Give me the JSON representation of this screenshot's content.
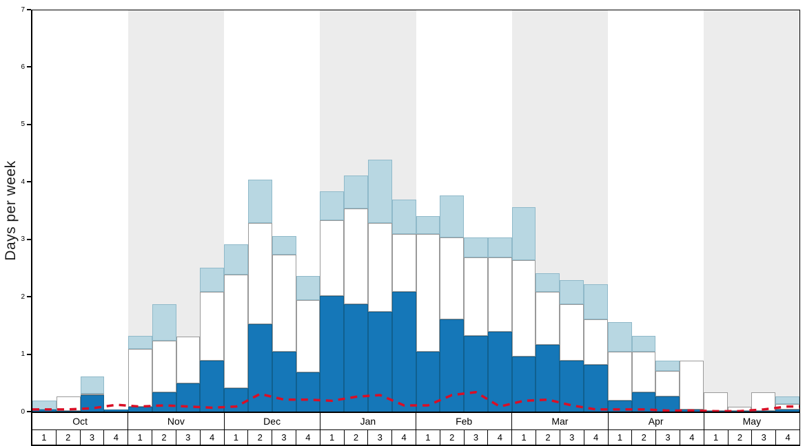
{
  "chart_data": {
    "type": "bar",
    "stacked": true,
    "title": "",
    "ylabel": "Days per week",
    "ylim": [
      0,
      7
    ],
    "yticks": [
      0,
      1,
      2,
      3,
      4,
      5,
      6,
      7
    ],
    "band_color": "#ececec",
    "legend": "none",
    "months": [
      {
        "name": "Oct",
        "shaded": false
      },
      {
        "name": "Nov",
        "shaded": true
      },
      {
        "name": "Dec",
        "shaded": false
      },
      {
        "name": "Jan",
        "shaded": true
      },
      {
        "name": "Feb",
        "shaded": false
      },
      {
        "name": "Mar",
        "shaded": true
      },
      {
        "name": "Apr",
        "shaded": false
      },
      {
        "name": "May",
        "shaded": true
      }
    ],
    "week_labels": [
      "1",
      "2",
      "3",
      "4"
    ],
    "categories": [
      "Oct 1",
      "Oct 2",
      "Oct 3",
      "Oct 4",
      "Nov 1",
      "Nov 2",
      "Nov 3",
      "Nov 4",
      "Dec 1",
      "Dec 2",
      "Dec 3",
      "Dec 4",
      "Jan 1",
      "Jan 2",
      "Jan 3",
      "Jan 4",
      "Feb 1",
      "Feb 2",
      "Feb 3",
      "Feb 4",
      "Mar 1",
      "Mar 2",
      "Mar 3",
      "Mar 4",
      "Apr 1",
      "Apr 2",
      "Apr 3",
      "Apr 4",
      "May 1",
      "May 2",
      "May 3",
      "May 4"
    ],
    "series": [
      {
        "name": "dark-blue",
        "color": "#1577b8",
        "border": "#10608f",
        "values": [
          0.05,
          0.03,
          0.3,
          0.05,
          0.1,
          0.35,
          0.5,
          0.9,
          0.42,
          1.53,
          1.05,
          0.7,
          2.02,
          1.88,
          1.75,
          2.1,
          1.05,
          1.62,
          1.33,
          1.4,
          0.97,
          1.18,
          0.9,
          0.83,
          0.2,
          0.35,
          0.28,
          0.05,
          0.03,
          0.03,
          0.03,
          0.05
        ]
      },
      {
        "name": "white",
        "color": "#ffffff",
        "border": "#999999",
        "values": [
          0.0,
          0.25,
          0.02,
          0.0,
          1.0,
          0.9,
          0.82,
          1.2,
          1.98,
          1.77,
          1.7,
          1.25,
          1.33,
          1.67,
          1.55,
          1.0,
          2.05,
          1.43,
          1.37,
          1.3,
          1.68,
          0.92,
          0.98,
          0.79,
          0.85,
          0.7,
          0.44,
          0.85,
          0.32,
          0.07,
          0.32,
          0.1
        ]
      },
      {
        "name": "light-blue",
        "color": "#b8d7e2",
        "border": "#8fb9c9",
        "values": [
          0.15,
          0.0,
          0.3,
          0.0,
          0.23,
          0.63,
          0.0,
          0.42,
          0.53,
          0.75,
          0.32,
          0.42,
          0.5,
          0.57,
          1.1,
          0.6,
          0.32,
          0.73,
          0.35,
          0.35,
          0.92,
          0.32,
          0.42,
          0.61,
          0.52,
          0.28,
          0.18,
          0.0,
          0.0,
          0.0,
          0.0,
          0.13
        ]
      }
    ],
    "overlay_line": {
      "name": "red-dashed",
      "color": "#d90f26",
      "style": "dashed",
      "values": [
        0.05,
        0.05,
        0.07,
        0.13,
        0.1,
        0.12,
        0.1,
        0.08,
        0.1,
        0.32,
        0.22,
        0.22,
        0.2,
        0.27,
        0.3,
        0.12,
        0.12,
        0.3,
        0.35,
        0.1,
        0.2,
        0.22,
        0.12,
        0.05,
        0.05,
        0.05,
        0.03,
        0.03,
        0.02,
        0.02,
        0.05,
        0.1
      ]
    }
  }
}
